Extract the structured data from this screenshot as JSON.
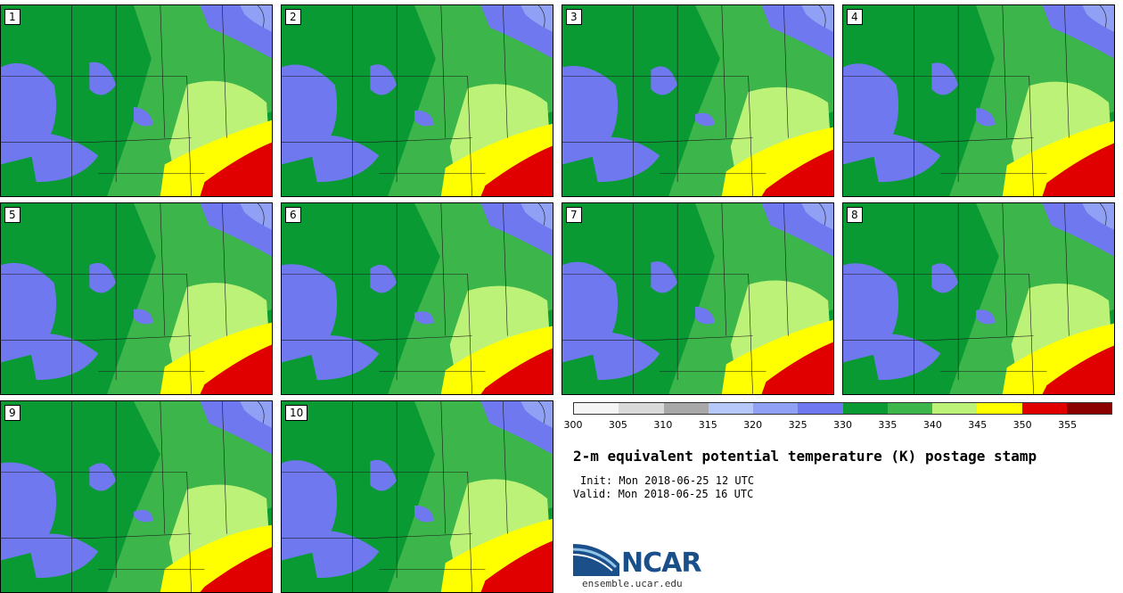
{
  "panels": [
    {
      "label": "1"
    },
    {
      "label": "2"
    },
    {
      "label": "3"
    },
    {
      "label": "4"
    },
    {
      "label": "5"
    },
    {
      "label": "6"
    },
    {
      "label": "7"
    },
    {
      "label": "8"
    },
    {
      "label": "9"
    },
    {
      "label": "10"
    }
  ],
  "colorbar": {
    "colors": [
      "#f5f5f5",
      "#d9d9d9",
      "#a8a8a8",
      "#b6c7fa",
      "#8fa0f5",
      "#6f78ef",
      "#0a9a34",
      "#3cb64a",
      "#bdf279",
      "#ffff00",
      "#e00000",
      "#8b0000"
    ],
    "ticks": [
      "300",
      "305",
      "310",
      "315",
      "320",
      "325",
      "330",
      "335",
      "340",
      "345",
      "350",
      "355"
    ]
  },
  "title": "2-m equivalent potential temperature (K) postage stamp",
  "init": "Init: Mon 2018-06-25 12 UTC",
  "valid": "Valid: Mon 2018-06-25 16 UTC",
  "logo": {
    "word": "NCAR",
    "url": "ensemble.ucar.edu"
  }
}
